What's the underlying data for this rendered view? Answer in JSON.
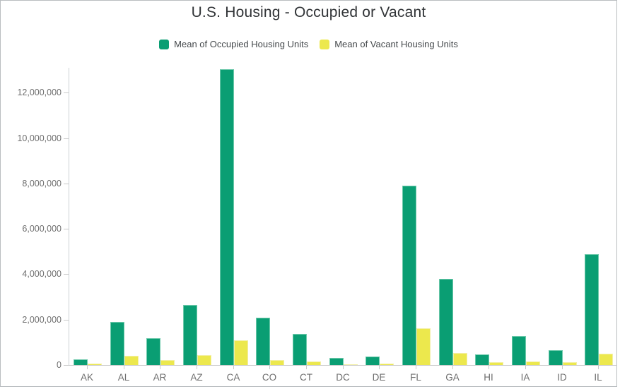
{
  "window": {
    "background": "#ffffff",
    "border_color": "#b9bdc0"
  },
  "header": {
    "title": "U.S. Housing - Occupied or Vacant"
  },
  "legend": {
    "position": "top",
    "items": [
      {
        "id": "occupied",
        "label": "Mean of Occupied Housing Units",
        "color": "#0a9e73"
      },
      {
        "id": "vacant",
        "label": "Mean of Vacant Housing Units",
        "color": "#ece84d"
      }
    ]
  },
  "chart_data": {
    "type": "bar",
    "title": "U.S. Housing - Occupied or Vacant",
    "categories": [
      "AK",
      "AL",
      "AR",
      "AZ",
      "CA",
      "CO",
      "CT",
      "DC",
      "DE",
      "FL",
      "GA",
      "HI",
      "IA",
      "ID",
      "IL"
    ],
    "series": [
      {
        "name": "Mean of Occupied Housing Units",
        "id": "occupied",
        "color": "#0a9e73",
        "values": [
          260000,
          1910000,
          1170000,
          2640000,
          13030000,
          2100000,
          1380000,
          300000,
          370000,
          7900000,
          3800000,
          470000,
          1270000,
          650000,
          4880000
        ]
      },
      {
        "name": "Mean of Vacant Housing Units",
        "id": "vacant",
        "color": "#ece84d",
        "values": [
          60000,
          400000,
          230000,
          430000,
          1080000,
          230000,
          155000,
          45000,
          75000,
          1610000,
          520000,
          115000,
          155000,
          115000,
          490000
        ]
      }
    ],
    "xlabel": "",
    "ylabel": "",
    "ylim": [
      0,
      13100000
    ],
    "ytick_interval": 2000000,
    "ytick_labels": [
      "0",
      "2,000,000",
      "4,000,000",
      "6,000,000",
      "8,000,000",
      "10,000,000",
      "12,000,000"
    ],
    "grid": false,
    "legend_position": "top",
    "axis_color": "#c9c9c9",
    "tick_label_color": "#6e6e6e"
  }
}
